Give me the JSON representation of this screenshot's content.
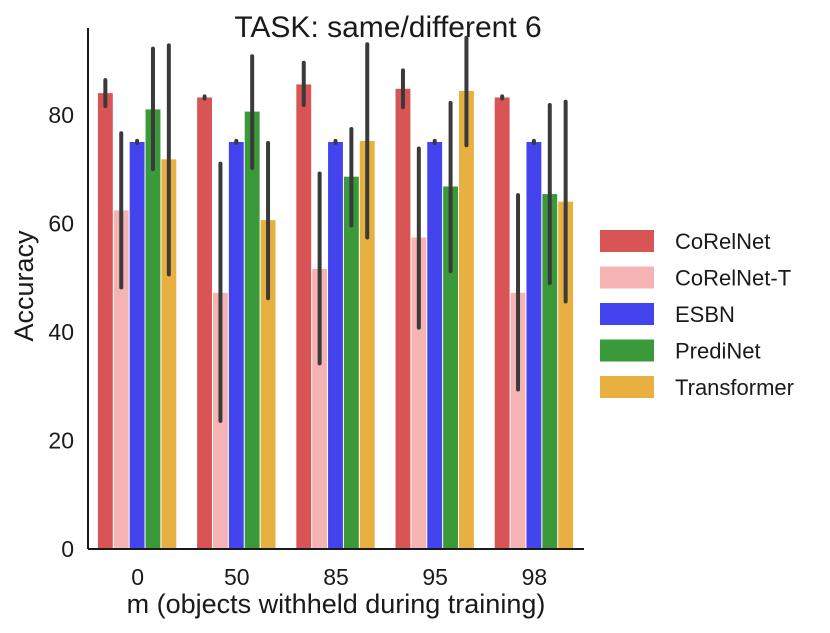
{
  "chart_data": {
    "type": "bar",
    "title": "TASK: same/different 6",
    "xlabel": "m (objects withheld during training)",
    "ylabel": "Accuracy",
    "categories": [
      "0",
      "50",
      "85",
      "95",
      "98"
    ],
    "ylim": [
      0,
      96
    ],
    "yticks": [
      0,
      20,
      40,
      60,
      80
    ],
    "grid": false,
    "legend_position": "right",
    "series": [
      {
        "name": "CoRelNet",
        "color": "#d95555",
        "values": [
          84,
          83.2,
          85.6,
          84.8,
          83.2
        ],
        "ci": [
          [
            81.6,
            86.4
          ],
          [
            83.0,
            83.4
          ],
          [
            81.8,
            89.6
          ],
          [
            81.4,
            88.2
          ],
          [
            83.0,
            83.4
          ]
        ]
      },
      {
        "name": "CoRelNet-T",
        "color": "#f5b3b3",
        "values": [
          62.4,
          47.2,
          51.6,
          57.4,
          47.2
        ],
        "ci": [
          [
            48.2,
            76.6
          ],
          [
            23.6,
            71.0
          ],
          [
            34.2,
            69.2
          ],
          [
            40.8,
            73.8
          ],
          [
            29.4,
            65.2
          ]
        ]
      },
      {
        "name": "ESBN",
        "color": "#4444ee",
        "values": [
          75,
          75,
          75,
          75,
          75
        ],
        "ci": [
          [
            74.8,
            75.2
          ],
          [
            74.8,
            75.2
          ],
          [
            74.8,
            75.2
          ],
          [
            74.8,
            75.2
          ],
          [
            74.8,
            75.2
          ]
        ]
      },
      {
        "name": "PrediNet",
        "color": "#3a9a3a",
        "values": [
          81,
          80.6,
          68.6,
          66.8,
          65.4
        ],
        "ci": [
          [
            70.0,
            92.2
          ],
          [
            70.2,
            90.8
          ],
          [
            59.6,
            77.4
          ],
          [
            51.2,
            82.2
          ],
          [
            49.0,
            81.8
          ]
        ]
      },
      {
        "name": "Transformer",
        "color": "#e8b040",
        "values": [
          71.8,
          60.6,
          75.2,
          84.4,
          64.0
        ],
        "ci": [
          [
            50.6,
            92.8
          ],
          [
            46.2,
            74.8
          ],
          [
            57.4,
            93.0
          ],
          [
            74.4,
            94.2
          ],
          [
            45.6,
            82.4
          ]
        ]
      }
    ]
  }
}
